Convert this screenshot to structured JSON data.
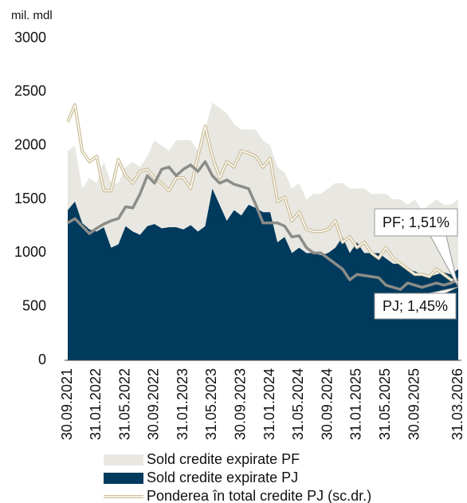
{
  "chart_data": {
    "type": "stacked-area-line",
    "y_unit": "mil. mdl",
    "categories": [
      "30.09.2021",
      null,
      null,
      null,
      "31.01.2022",
      null,
      null,
      null,
      "31.05.2022",
      null,
      null,
      null,
      "30.09.2022",
      null,
      null,
      null,
      "31.01.2023",
      null,
      null,
      null,
      "31.05.2023",
      null,
      null,
      null,
      "30.09.2023",
      null,
      null,
      null,
      "31.01.2024",
      null,
      null,
      null,
      "31.05.2024",
      null,
      null,
      null,
      "30.09.2024",
      null,
      null,
      null,
      "31.01.2025",
      null,
      null,
      null,
      "31.05.2025",
      null,
      null,
      null,
      "30.09.2025",
      null,
      null,
      null,
      null,
      null,
      "31.03.2026"
    ],
    "ylim": [
      0,
      3000
    ],
    "yticks": [
      0,
      500,
      1000,
      1500,
      2000,
      2500,
      3000
    ],
    "y2lim": [
      0,
      6
    ],
    "grid": false,
    "series": [
      {
        "name": "Sold credite expirate PJ",
        "kind": "area",
        "color": "#003a5d",
        "values": [
          1400,
          1480,
          1280,
          1220,
          1200,
          1240,
          1050,
          1080,
          1250,
          1200,
          1170,
          1250,
          1270,
          1230,
          1240,
          1240,
          1220,
          1260,
          1200,
          1250,
          1600,
          1450,
          1300,
          1400,
          1350,
          1450,
          1420,
          1380,
          1380,
          1100,
          1150,
          1000,
          1050,
          1000,
          1000,
          980,
          1000,
          1050,
          1150,
          1000,
          1100,
          1000,
          1000,
          1000,
          950,
          900,
          900,
          850,
          830,
          800,
          780,
          800,
          820,
          800,
          850
        ]
      },
      {
        "name": "Sold credite expirate PF",
        "kind": "area",
        "color": "#e8e7e1",
        "values": [
          550,
          520,
          320,
          480,
          450,
          610,
          600,
          570,
          550,
          650,
          630,
          650,
          780,
          770,
          710,
          810,
          830,
          790,
          750,
          900,
          800,
          900,
          1000,
          800,
          800,
          700,
          730,
          670,
          620,
          700,
          600,
          600,
          600,
          500,
          550,
          570,
          600,
          600,
          500,
          600,
          500,
          600,
          550,
          550,
          600,
          600,
          600,
          600,
          670,
          600,
          670,
          700,
          630,
          650,
          650
        ]
      },
      {
        "name": "Ponderea în total credite PJ (sc.dr.)",
        "kind": "line",
        "axis": "y2",
        "color": "#cdbf9a",
        "values": [
          4.44,
          4.76,
          3.9,
          3.7,
          3.8,
          3.16,
          3.16,
          3.74,
          3.44,
          3.3,
          3.52,
          3.56,
          3.4,
          3.3,
          3.16,
          3.4,
          3.4,
          3.2,
          3.8,
          4.36,
          3.8,
          3.4,
          3.7,
          3.6,
          3.9,
          3.86,
          3.8,
          3.6,
          3.76,
          2.96,
          3.04,
          2.6,
          2.76,
          2.44,
          2.4,
          2.4,
          2.44,
          2.6,
          2.2,
          2.3,
          2.1,
          2.2,
          2.0,
          1.9,
          2.1,
          1.9,
          1.8,
          1.7,
          1.6,
          1.6,
          1.56,
          1.7,
          1.6,
          1.5,
          1.45
        ]
      },
      {
        "kind": "line",
        "axis": "y2",
        "color": "#8c8c88",
        "values": [
          2.56,
          2.64,
          2.5,
          2.36,
          2.46,
          2.54,
          2.6,
          2.64,
          2.86,
          2.84,
          3.1,
          3.44,
          3.3,
          3.56,
          3.6,
          3.44,
          3.56,
          3.64,
          3.52,
          3.7,
          3.44,
          3.3,
          3.36,
          3.28,
          3.24,
          3.2,
          2.9,
          2.56,
          2.56,
          2.56,
          2.5,
          2.3,
          2.32,
          2.1,
          2.0,
          2.0,
          1.9,
          1.8,
          1.7,
          1.5,
          1.6,
          1.58,
          1.56,
          1.54,
          1.4,
          1.36,
          1.32,
          1.44,
          1.4,
          1.36,
          1.4,
          1.44,
          1.4,
          1.44,
          1.51
        ]
      }
    ],
    "annotations": [
      "PF; 1,51%",
      "PJ; 1,45%"
    ]
  }
}
